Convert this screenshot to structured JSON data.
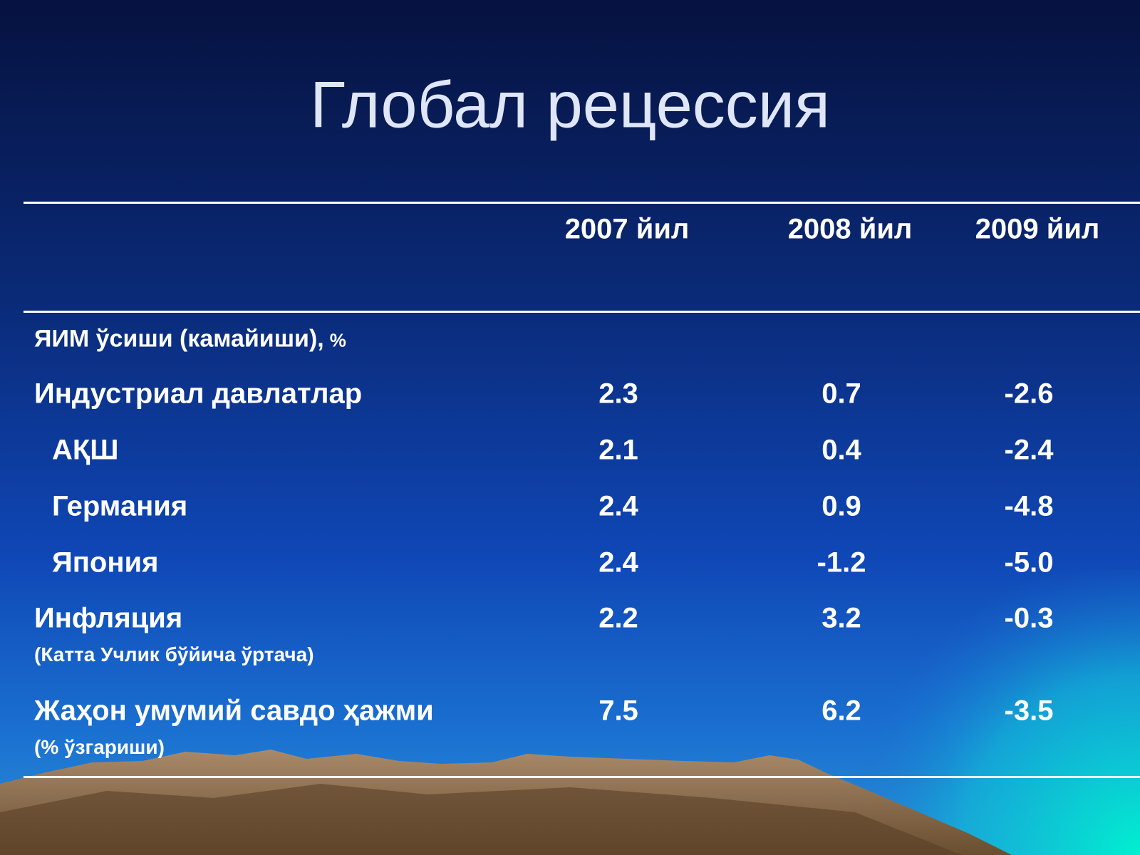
{
  "title": "Глобал рецессия",
  "table": {
    "columns": [
      "2007 йил",
      "2008 йил",
      "2009 йил"
    ],
    "section": {
      "label": "ЯИМ ўсиши (камайиши),",
      "unit": "%"
    },
    "rows": [
      {
        "label": "Индустриал давлатлар",
        "values": [
          "2.3",
          "0.7",
          "-2.6"
        ],
        "subrows": [
          {
            "label": "АҚШ",
            "values": [
              "2.1",
              "0.4",
              "-2.4"
            ]
          },
          {
            "label": "Германия",
            "values": [
              "2.4",
              "0.9",
              "-4.8"
            ]
          },
          {
            "label": "Япония",
            "values": [
              "2.4",
              "-1.2",
              "-5.0"
            ]
          }
        ]
      },
      {
        "label": "Инфляция",
        "note": "(Катта Учлик бўйича ўртача)",
        "values": [
          "2.2",
          "3.2",
          "-0.3"
        ]
      },
      {
        "label": "Жаҳон умумий савдо ҳажми",
        "note": "(% ўзгариши)",
        "values": [
          "7.5",
          "6.2",
          "-3.5"
        ]
      }
    ]
  }
}
